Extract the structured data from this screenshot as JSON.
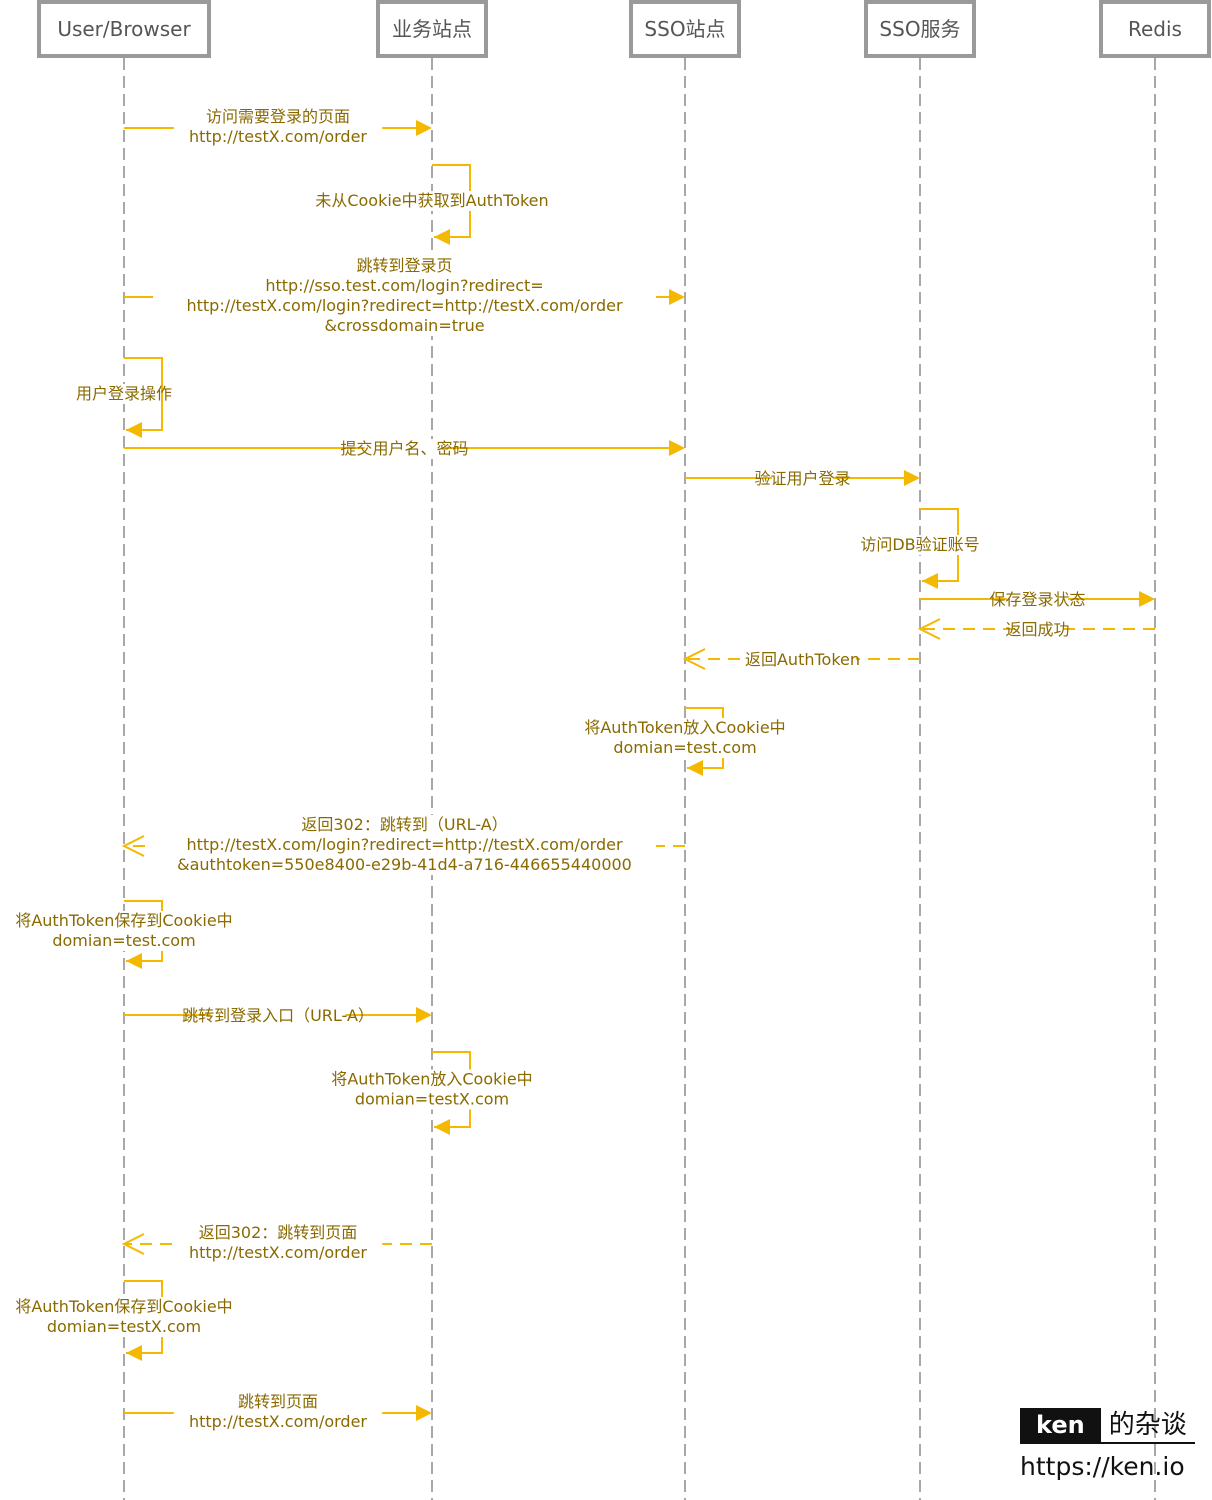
{
  "actors": [
    {
      "id": "browser",
      "label": "User/Browser"
    },
    {
      "id": "biz",
      "label": "业务站点"
    },
    {
      "id": "ssosite",
      "label": "SSO站点"
    },
    {
      "id": "ssosvc",
      "label": "SSO服务"
    },
    {
      "id": "redis",
      "label": "Redis"
    }
  ],
  "messages": [
    {
      "from": "browser",
      "to": "biz",
      "kind": "sync",
      "lines": [
        "访问需要登录的页面",
        "http://testX.com/order"
      ]
    },
    {
      "from": "biz",
      "to": "biz",
      "kind": "self",
      "lines": [
        "未从Cookie中获取到AuthToken"
      ]
    },
    {
      "from": "browser",
      "to": "ssosite",
      "kind": "sync",
      "lines": [
        "跳转到登录页",
        "http://sso.test.com/login?redirect=",
        "http://testX.com/login?redirect=http://testX.com/order",
        "&crossdomain=true"
      ]
    },
    {
      "from": "browser",
      "to": "browser",
      "kind": "self",
      "lines": [
        "用户登录操作"
      ]
    },
    {
      "from": "browser",
      "to": "ssosite",
      "kind": "sync",
      "lines": [
        "提交用户名、密码"
      ]
    },
    {
      "from": "ssosite",
      "to": "ssosvc",
      "kind": "sync",
      "lines": [
        "验证用户登录"
      ]
    },
    {
      "from": "ssosvc",
      "to": "ssosvc",
      "kind": "self",
      "lines": [
        "访问DB验证账号"
      ]
    },
    {
      "from": "ssosvc",
      "to": "redis",
      "kind": "sync",
      "lines": [
        "保存登录状态"
      ]
    },
    {
      "from": "redis",
      "to": "ssosvc",
      "kind": "return",
      "lines": [
        "返回成功"
      ]
    },
    {
      "from": "ssosvc",
      "to": "ssosite",
      "kind": "return",
      "lines": [
        "返回AuthToken"
      ]
    },
    {
      "from": "ssosite",
      "to": "ssosite",
      "kind": "self",
      "lines": [
        "将AuthToken放入Cookie中",
        "domian=test.com"
      ]
    },
    {
      "from": "ssosite",
      "to": "browser",
      "kind": "return",
      "lines": [
        "返回302：跳转到（URL-A）",
        "http://testX.com/login?redirect=http://testX.com/order",
        "&authtoken=550e8400-e29b-41d4-a716-446655440000"
      ]
    },
    {
      "from": "browser",
      "to": "browser",
      "kind": "self",
      "lines": [
        "将AuthToken保存到Cookie中",
        "domian=test.com"
      ]
    },
    {
      "from": "browser",
      "to": "biz",
      "kind": "sync",
      "lines": [
        "跳转到登录入口（URL-A）"
      ]
    },
    {
      "from": "biz",
      "to": "biz",
      "kind": "self",
      "lines": [
        "将AuthToken放入Cookie中",
        "domian=testX.com"
      ]
    },
    {
      "from": "biz",
      "to": "browser",
      "kind": "return",
      "lines": [
        "返回302：跳转到页面",
        "http://testX.com/order"
      ]
    },
    {
      "from": "browser",
      "to": "browser",
      "kind": "self",
      "lines": [
        "将AuthToken保存到Cookie中",
        "domian=testX.com"
      ]
    },
    {
      "from": "browser",
      "to": "biz",
      "kind": "sync",
      "lines": [
        "跳转到页面",
        "http://testX.com/order"
      ]
    }
  ],
  "logo": {
    "brand": "ken",
    "suffix": "的杂谈",
    "url": "https://ken.io"
  },
  "colors": {
    "arrow": "#f5b800",
    "text": "#8a6a00",
    "lifeline": "#a8a8a8",
    "box": "#9a9a9a"
  }
}
